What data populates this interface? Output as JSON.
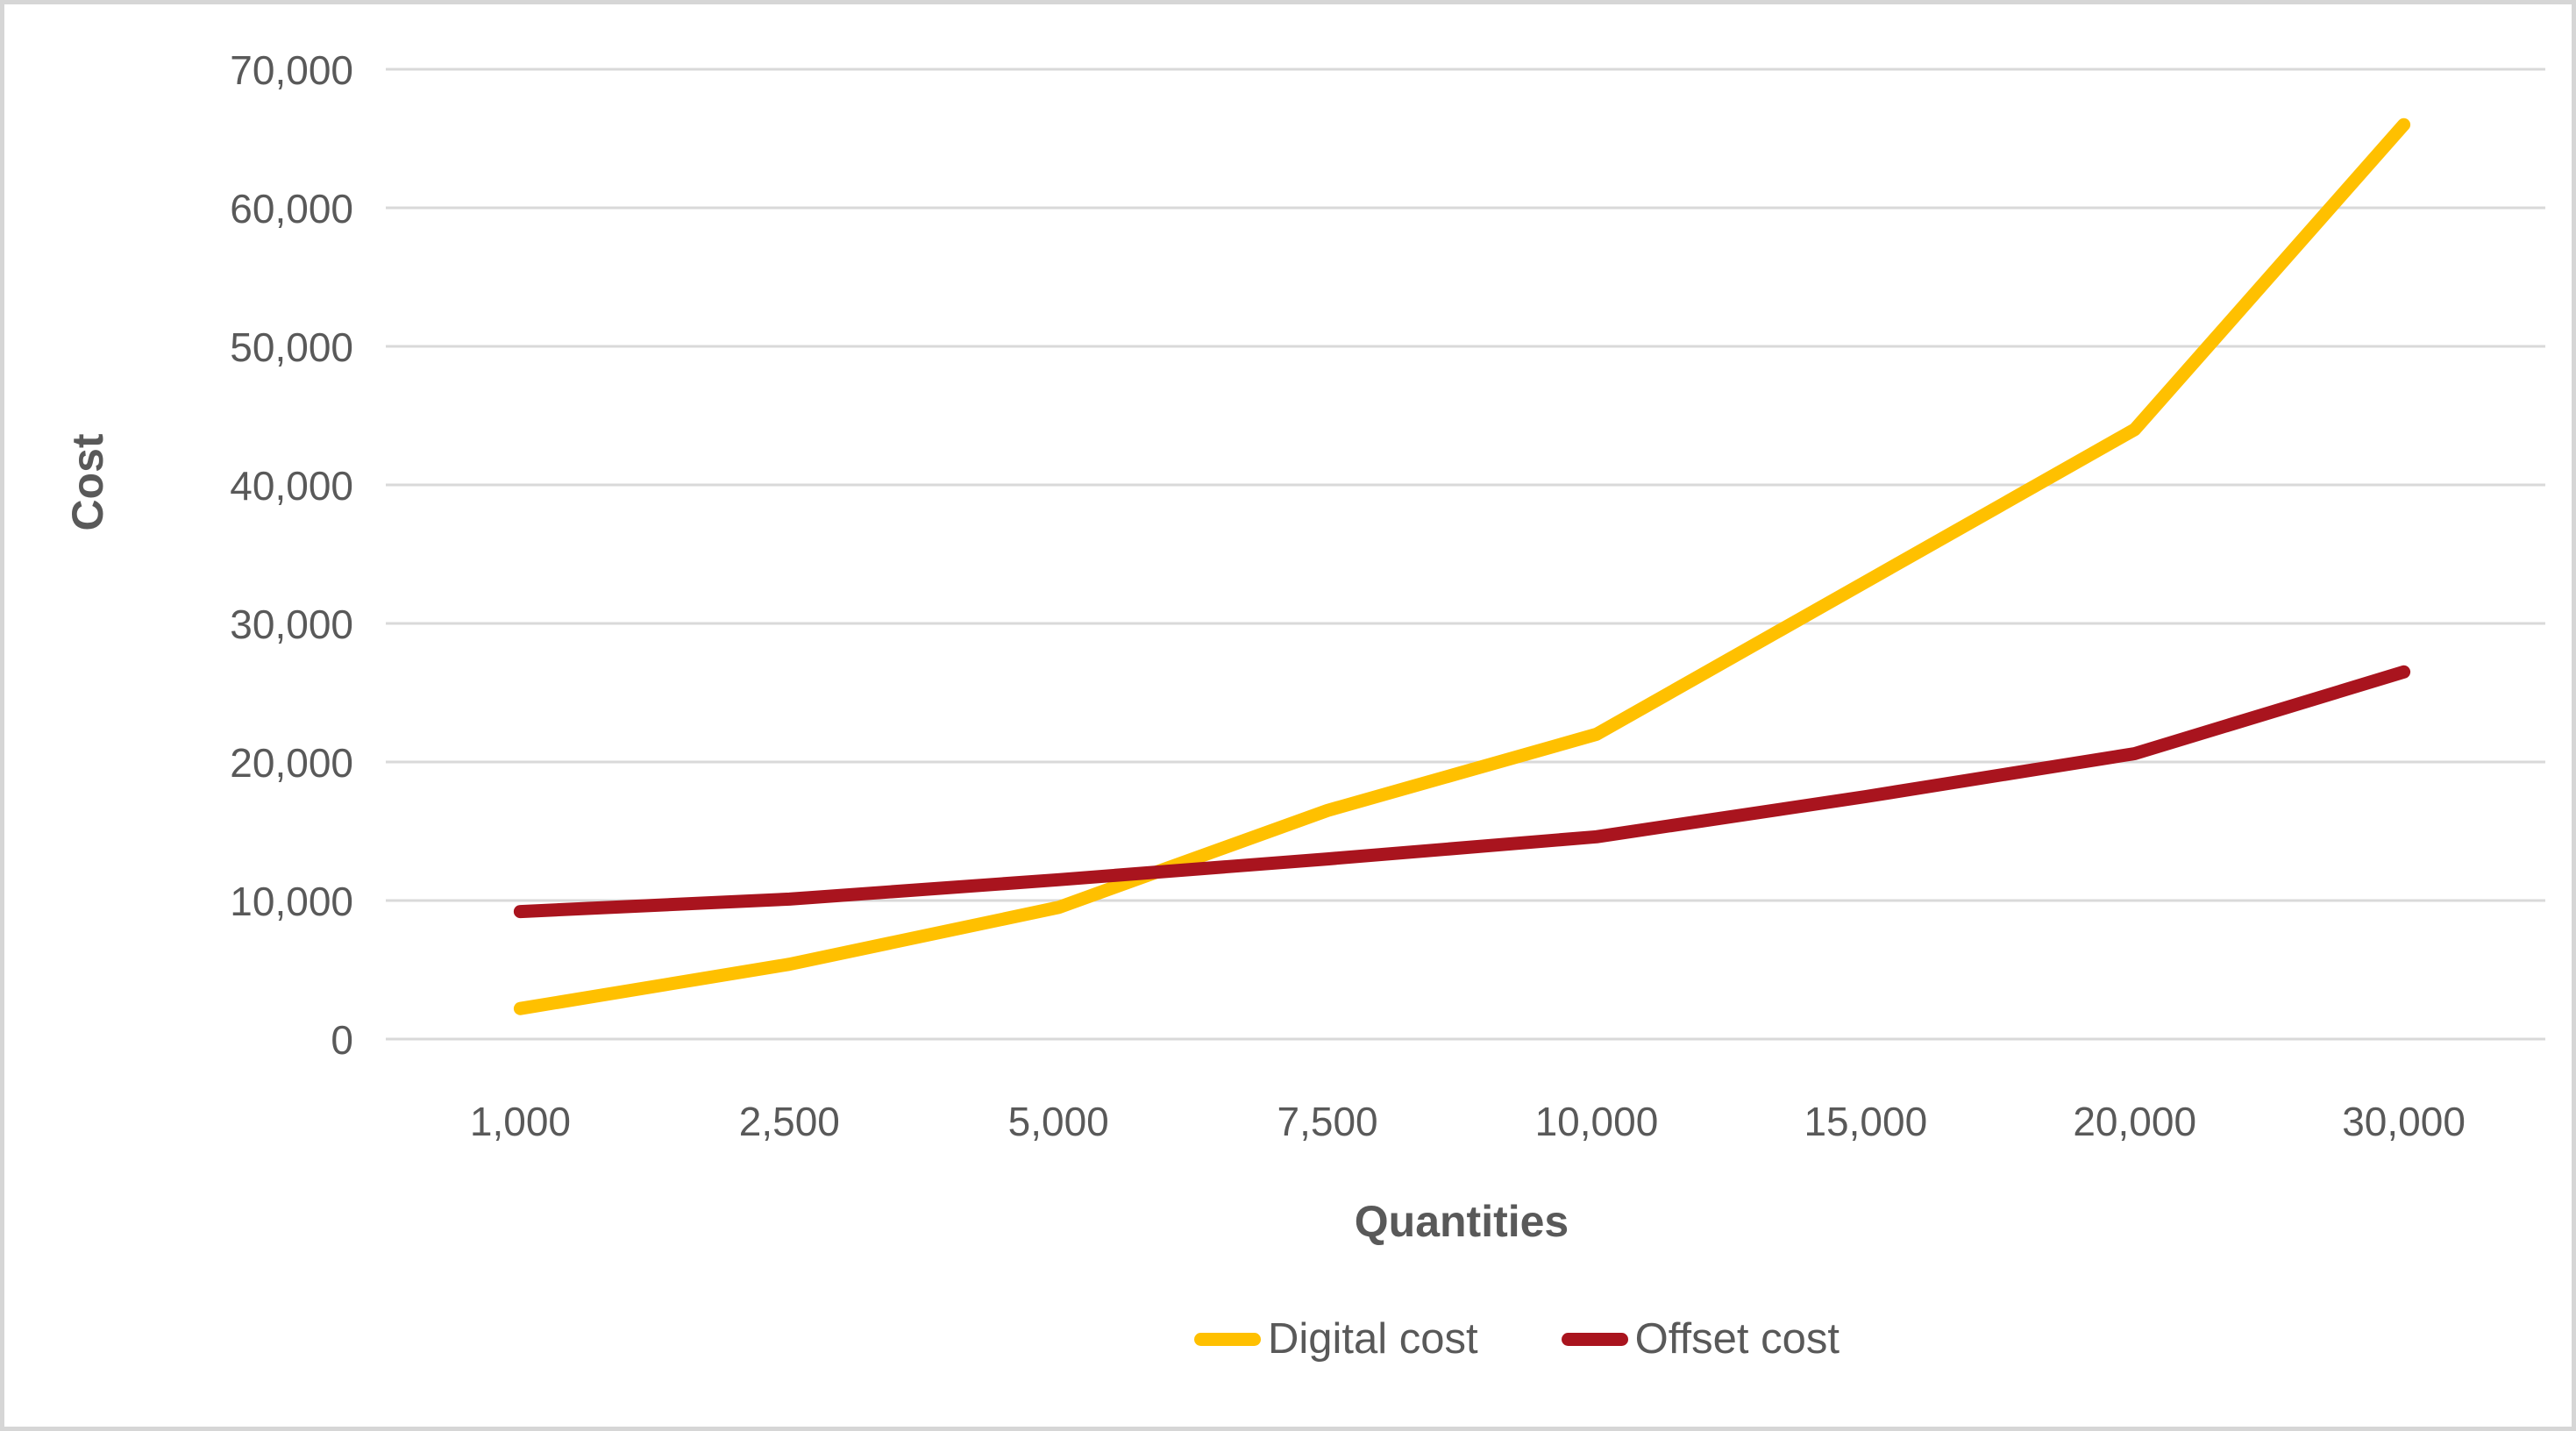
{
  "chart_data": {
    "type": "line",
    "title": "",
    "xlabel": "Quantities",
    "ylabel": "Cost",
    "categories": [
      "1,000",
      "2,500",
      "5,000",
      "7,500",
      "10,000",
      "15,000",
      "20,000",
      "30,000"
    ],
    "series": [
      {
        "name": "Digital cost",
        "color": "#FFC000",
        "values": [
          2200,
          5400,
          9500,
          16500,
          22000,
          33000,
          44000,
          66000
        ]
      },
      {
        "name": "Offset cost",
        "color": "#A9141E",
        "values": [
          9200,
          10100,
          11500,
          13000,
          14600,
          17500,
          20600,
          26500
        ]
      }
    ],
    "y_ticks": [
      0,
      10000,
      20000,
      30000,
      40000,
      50000,
      60000,
      70000
    ],
    "y_tick_labels": [
      "0",
      "10,000",
      "20,000",
      "30,000",
      "40,000",
      "50,000",
      "60,000",
      "70,000"
    ],
    "ylim": [
      0,
      70000
    ],
    "grid": true,
    "legend_position": "bottom"
  },
  "colors": {
    "text": "#595959",
    "gridline": "#d9d9d9",
    "frame_border": "#d6d6d6",
    "background": "#ffffff"
  }
}
